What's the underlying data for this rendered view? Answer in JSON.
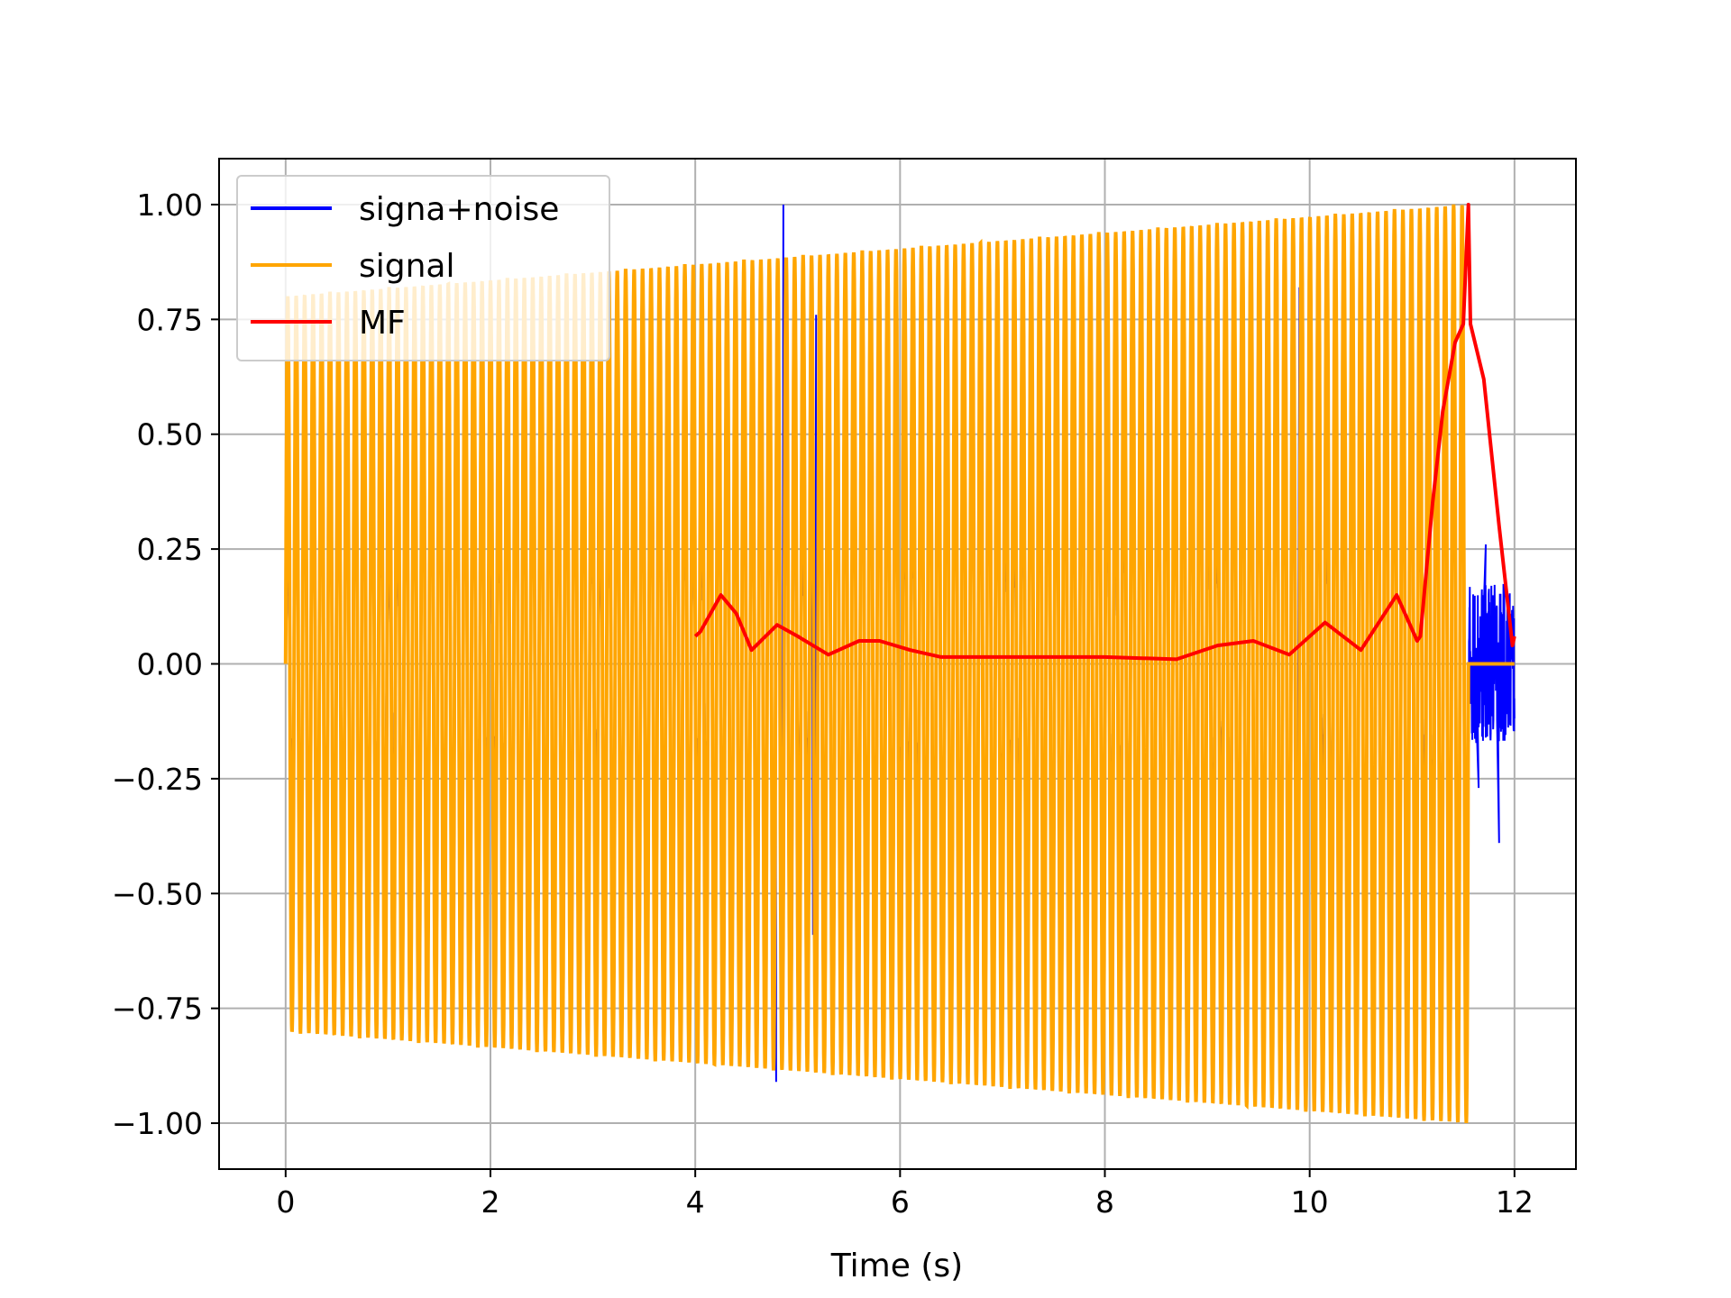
{
  "chart_data": {
    "type": "line",
    "title": "",
    "xlabel": "Time (s)",
    "ylabel": "",
    "xlim": [
      -0.65,
      12.6
    ],
    "ylim": [
      -1.1,
      1.1
    ],
    "xticks": [
      0,
      2,
      4,
      6,
      8,
      10,
      12
    ],
    "xtick_labels": [
      "0",
      "2",
      "4",
      "6",
      "8",
      "10",
      "12"
    ],
    "yticks": [
      1.0,
      0.75,
      0.5,
      0.25,
      0.0,
      -0.25,
      -0.5,
      -0.75,
      -1.0
    ],
    "ytick_labels": [
      "1.00",
      "0.75",
      "0.50",
      "0.25",
      "0.00",
      "−0.25",
      "−0.50",
      "−0.75",
      "−1.00"
    ],
    "grid": true,
    "legend_position": "top-left",
    "series": [
      {
        "name": "signa+noise",
        "color": "#0000ff",
        "signal_duration": 11.55,
        "total_duration": 12.0,
        "signal_amplitude_start": 0.8,
        "signal_amplitude_end": 1.0,
        "spikes": [
          {
            "x": 4.39,
            "y": 0.86
          },
          {
            "x": 4.43,
            "y": -0.63
          },
          {
            "x": 4.79,
            "y": -0.91
          },
          {
            "x": 4.86,
            "y": 1.0
          },
          {
            "x": 5.18,
            "y": 0.76
          },
          {
            "x": 5.15,
            "y": -0.59
          },
          {
            "x": 9.67,
            "y": 0.81
          },
          {
            "x": 9.64,
            "y": -0.82
          },
          {
            "x": 9.9,
            "y": 0.82
          },
          {
            "x": 11.85,
            "y": -0.39
          },
          {
            "x": 11.72,
            "y": 0.26
          },
          {
            "x": 11.65,
            "y": -0.27
          }
        ]
      },
      {
        "name": "signal",
        "color": "#ffa500",
        "x_start": 0.0,
        "x_end": 11.55,
        "amplitude_start": 0.8,
        "amplitude_end": 1.0,
        "cycles": 140,
        "zero_after": 11.55
      },
      {
        "name": "MF",
        "color": "#ff0000",
        "x": [
          4.0,
          4.05,
          4.25,
          4.4,
          4.55,
          4.8,
          5.0,
          5.3,
          5.6,
          5.8,
          6.1,
          6.4,
          7.0,
          8.0,
          8.7,
          9.1,
          9.45,
          9.8,
          10.15,
          10.5,
          10.85,
          11.05,
          11.08,
          11.2,
          11.3,
          11.42,
          11.5,
          11.55,
          11.57,
          11.7,
          11.85,
          11.98,
          12.0
        ],
        "y": [
          0.06,
          0.07,
          0.15,
          0.11,
          0.03,
          0.085,
          0.06,
          0.02,
          0.05,
          0.05,
          0.03,
          0.015,
          0.015,
          0.015,
          0.01,
          0.04,
          0.05,
          0.02,
          0.09,
          0.03,
          0.15,
          0.05,
          0.06,
          0.35,
          0.55,
          0.7,
          0.74,
          1.0,
          0.74,
          0.62,
          0.3,
          0.04,
          0.06
        ],
        "spike": {
          "x": 11.55,
          "y": 1.0
        }
      }
    ]
  }
}
